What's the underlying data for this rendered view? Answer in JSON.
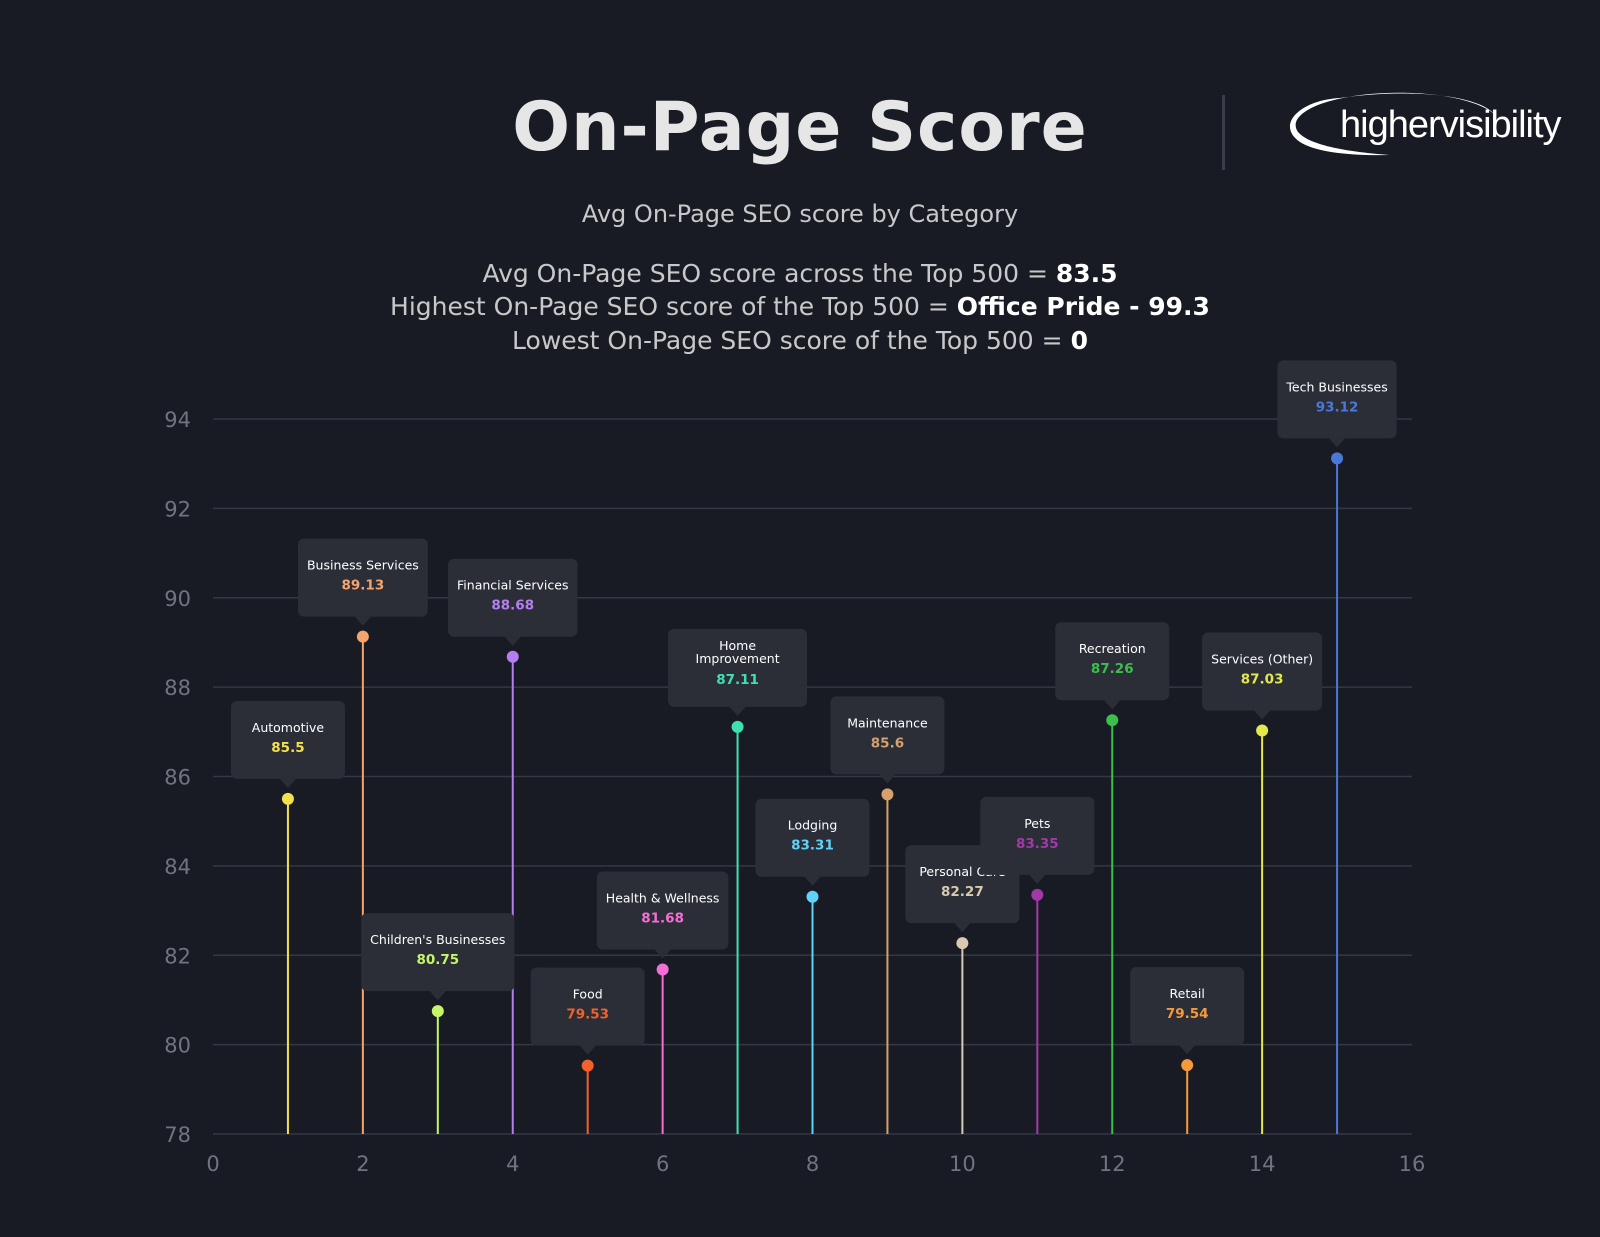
{
  "header": {
    "title": "On-Page Score",
    "subtitle": "Avg On-Page SEO score by Category",
    "logo_text": "highervisibility"
  },
  "stats": [
    {
      "label": "Avg On-Page SEO score across the Top 500 = ",
      "value": "83.5"
    },
    {
      "label": "Highest On-Page SEO score of the Top 500 = ",
      "value": "Office Pride - 99.3"
    },
    {
      "label": "Lowest On-Page SEO score of the Top 500 = ",
      "value": "0"
    }
  ],
  "chart_data": {
    "type": "scatter",
    "style": "lollipop",
    "title": "Avg On-Page SEO score by Category",
    "xlabel": "",
    "ylabel": "",
    "xlim": [
      0,
      16
    ],
    "ylim": [
      78,
      94
    ],
    "xticks": [
      "0",
      "2",
      "4",
      "6",
      "8",
      "10",
      "12",
      "14",
      "16"
    ],
    "yticks": [
      "78",
      "80",
      "82",
      "84",
      "86",
      "88",
      "90",
      "92",
      "94"
    ],
    "grid": true,
    "points": [
      {
        "x": 1,
        "y": 85.5,
        "name": "Automotive",
        "label": "85.5",
        "color": "#f4e04d"
      },
      {
        "x": 2,
        "y": 89.13,
        "name": "Business Services",
        "label": "89.13",
        "color": "#f4a46c"
      },
      {
        "x": 3,
        "y": 80.75,
        "name": "Children's Businesses",
        "label": "80.75",
        "color": "#c6f56a"
      },
      {
        "x": 4,
        "y": 88.68,
        "name": "Financial Services",
        "label": "88.68",
        "color": "#b57ef0"
      },
      {
        "x": 5,
        "y": 79.53,
        "name": "Food",
        "label": "79.53",
        "color": "#f2612c"
      },
      {
        "x": 6,
        "y": 81.68,
        "name": "Health & Wellness",
        "label": "81.68",
        "color": "#f56ed6"
      },
      {
        "x": 7,
        "y": 87.11,
        "name": "Home Improvement",
        "label": "87.11",
        "color": "#3fe0b0"
      },
      {
        "x": 8,
        "y": 83.31,
        "name": "Lodging",
        "label": "83.31",
        "color": "#5fd2f7"
      },
      {
        "x": 9,
        "y": 85.6,
        "name": "Maintenance",
        "label": "85.6",
        "color": "#d6a06c"
      },
      {
        "x": 10,
        "y": 82.27,
        "name": "Personal Care",
        "label": "82.27",
        "color": "#d9c9b0"
      },
      {
        "x": 11,
        "y": 83.35,
        "name": "Pets",
        "label": "83.35",
        "color": "#a13aa8"
      },
      {
        "x": 12,
        "y": 87.26,
        "name": "Recreation",
        "label": "87.26",
        "color": "#3cbf4a"
      },
      {
        "x": 13,
        "y": 79.54,
        "name": "Retail",
        "label": "79.54",
        "color": "#f59a3a"
      },
      {
        "x": 14,
        "y": 87.03,
        "name": "Services (Other)",
        "label": "87.03",
        "color": "#e4e84a"
      },
      {
        "x": 15,
        "y": 93.12,
        "name": "Tech Businesses",
        "label": "93.12",
        "color": "#4a78d8"
      }
    ]
  }
}
